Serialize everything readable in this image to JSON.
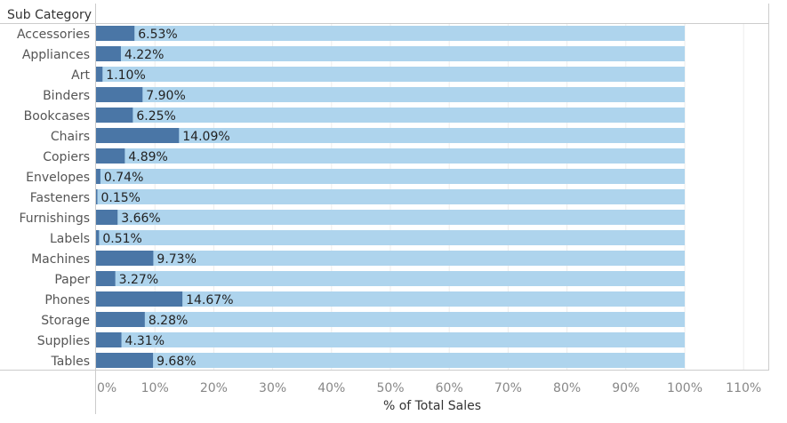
{
  "chart_data": {
    "type": "bar",
    "orientation": "horizontal",
    "row_header": "Sub Category",
    "xlabel": "% of Total Sales",
    "xlim": [
      0,
      110
    ],
    "xticks": [
      "0%",
      "10%",
      "20%",
      "30%",
      "40%",
      "50%",
      "60%",
      "70%",
      "80%",
      "90%",
      "100%",
      "110%"
    ],
    "grid": true,
    "background_bar_value": 100,
    "categories": [
      "Accessories",
      "Appliances",
      "Art",
      "Binders",
      "Bookcases",
      "Chairs",
      "Copiers",
      "Envelopes",
      "Fasteners",
      "Furnishings",
      "Labels",
      "Machines",
      "Paper",
      "Phones",
      "Storage",
      "Supplies",
      "Tables"
    ],
    "values": [
      6.53,
      4.22,
      1.1,
      7.9,
      6.25,
      14.09,
      4.89,
      0.74,
      0.15,
      3.66,
      0.51,
      9.73,
      3.27,
      14.67,
      8.28,
      4.31,
      9.68
    ],
    "value_labels": [
      "6.53%",
      "4.22%",
      "1.10%",
      "7.90%",
      "6.25%",
      "14.09%",
      "4.89%",
      "0.74%",
      "0.15%",
      "3.66%",
      "0.51%",
      "9.73%",
      "3.27%",
      "14.67%",
      "8.28%",
      "4.31%",
      "9.68%"
    ],
    "colors": {
      "bar": "#4a76a6",
      "background_bar": "#aed4ed",
      "grid": "#ececec",
      "axis": "#cccccc"
    }
  }
}
